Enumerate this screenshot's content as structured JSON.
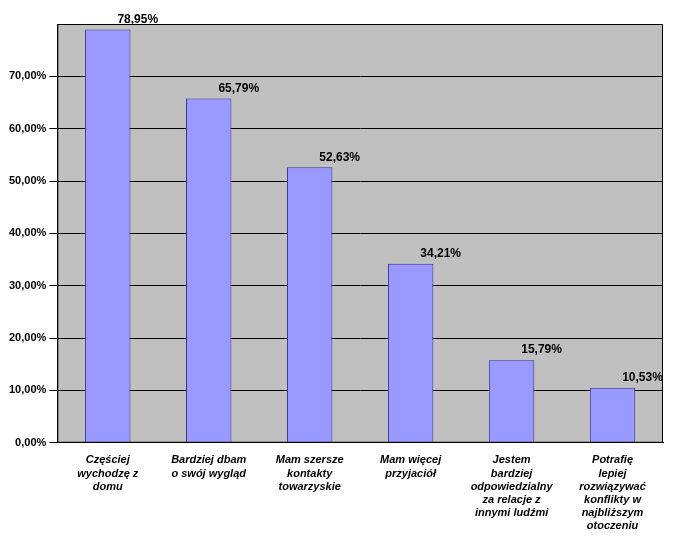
{
  "chart_data": {
    "type": "bar",
    "categories": [
      "Częściej wychodzę z domu",
      "Bardziej dbam o swój wygląd",
      "Mam szersze kontakty towarzyskie",
      "Mam więcej przyjaciół",
      "Jestem bardziej odpowiedzialny za relacje z innymi ludźmi",
      "Potrafię lepiej rozwiązywać konflikty w najbliższym otoczeniu"
    ],
    "values": [
      78.95,
      65.79,
      52.63,
      34.21,
      15.79,
      10.53
    ],
    "value_labels": [
      "78,95%",
      "65,79%",
      "52,63%",
      "34,21%",
      "15,79%",
      "10,53%"
    ],
    "color": "#9999ff",
    "ylim": [
      0,
      80
    ],
    "yticks": [
      {
        "value": 0,
        "label": "0,00%"
      },
      {
        "value": 10,
        "label": "10,00%"
      },
      {
        "value": 20,
        "label": "20,00%"
      },
      {
        "value": 30,
        "label": "30,00%"
      },
      {
        "value": 40,
        "label": "40,00%"
      },
      {
        "value": 50,
        "label": "50,00%"
      },
      {
        "value": 60,
        "label": "60,00%"
      },
      {
        "value": 70,
        "label": "70,00%"
      }
    ],
    "grid": true,
    "data_labels": true
  }
}
